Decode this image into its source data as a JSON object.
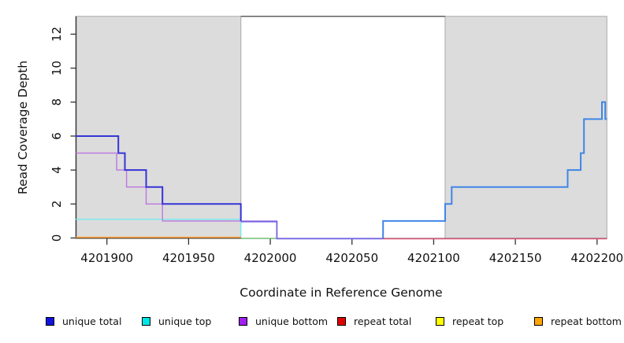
{
  "chart_data": {
    "type": "line",
    "subtype": "step-coverage-plot",
    "title": "",
    "xlabel": "Coordinate in Reference Genome",
    "ylabel": "Read Coverage Depth",
    "xlim": [
      4201881,
      4202206
    ],
    "ylim": [
      0,
      13
    ],
    "x_ticks": [
      4201900,
      4201950,
      4202000,
      4202050,
      4202100,
      4202150,
      4202200
    ],
    "y_ticks": [
      0,
      2,
      4,
      6,
      8,
      10,
      12
    ],
    "grid": false,
    "background": "#ffffff",
    "shaded_regions": [
      {
        "name": "left-shaded-region",
        "x0": 4201881,
        "x1": 4201982,
        "color": "#dcdcdc",
        "border": "#a8a8a8"
      },
      {
        "name": "right-shaded-region",
        "x0": 4202107,
        "x1": 4202206,
        "color": "#dcdcdc",
        "border": "#a8a8a8"
      }
    ],
    "gap_top_line": {
      "x0": 4201982,
      "x1": 4202107,
      "depth": 13.05,
      "color": "#5f5f5f"
    },
    "series": [
      {
        "name": "unique total",
        "color": "#1212e0",
        "steps": [
          [
            4201881,
            6
          ],
          [
            4201907,
            5
          ],
          [
            4201911,
            4
          ],
          [
            4201924,
            3
          ],
          [
            4201934,
            2
          ],
          [
            4201982,
            1
          ],
          [
            4202004,
            0
          ],
          [
            4202069,
            1
          ],
          [
            4202107,
            2
          ],
          [
            4202111,
            3
          ],
          [
            4202182,
            4
          ],
          [
            4202190,
            5
          ],
          [
            4202192,
            7
          ],
          [
            4202203,
            8
          ],
          [
            4202205,
            7
          ],
          [
            4202206,
            7
          ]
        ]
      },
      {
        "name": "unique top",
        "color": "#00e5e5",
        "steps": [
          [
            4201881,
            1
          ],
          [
            4201982,
            0
          ],
          [
            4202069,
            1
          ],
          [
            4202107,
            2
          ],
          [
            4202111,
            3
          ],
          [
            4202182,
            4
          ],
          [
            4202190,
            5
          ],
          [
            4202192,
            7
          ],
          [
            4202203,
            8
          ],
          [
            4202205,
            7
          ],
          [
            4202206,
            7
          ]
        ]
      },
      {
        "name": "unique bottom",
        "color": "#a020f0",
        "steps": [
          [
            4201881,
            5
          ],
          [
            4201906,
            4
          ],
          [
            4201912,
            3
          ],
          [
            4201924,
            2
          ],
          [
            4201934,
            1
          ],
          [
            4202004,
            0
          ],
          [
            4202206,
            0
          ]
        ]
      },
      {
        "name": "repeat total",
        "color": "#e00000",
        "steps": [
          [
            4201881,
            0
          ],
          [
            4202206,
            0
          ]
        ]
      },
      {
        "name": "repeat top",
        "color": "#ffff00",
        "steps": [
          [
            4201881,
            0
          ],
          [
            4202206,
            0
          ]
        ]
      },
      {
        "name": "repeat bottom",
        "color": "#ffa500",
        "steps": [
          [
            4201881,
            0
          ],
          [
            4202206,
            0
          ]
        ]
      }
    ],
    "render_paths": [
      {
        "name": "repeat-bottom-visible",
        "color": "#ff9f33",
        "width": 1.6,
        "dy": -0.8,
        "steps": [
          [
            4201881,
            0
          ],
          [
            4201982,
            0
          ]
        ]
      },
      {
        "name": "unique-top-left",
        "color": "#7deaea",
        "width": 1.5,
        "dy": -2.2,
        "steps": [
          [
            4201881,
            1
          ],
          [
            4201982,
            0
          ]
        ]
      },
      {
        "name": "unique-bottom-left",
        "color": "#bb76e0",
        "width": 1.4,
        "dy": 0,
        "steps": [
          [
            4201881,
            5
          ],
          [
            4201906,
            4
          ],
          [
            4201912,
            3
          ],
          [
            4201924,
            2
          ],
          [
            4201934,
            1
          ],
          [
            4202004,
            0
          ]
        ]
      },
      {
        "name": "unique-total-left",
        "color": "#3634d6",
        "width": 2,
        "dy": 0,
        "steps": [
          [
            4201881,
            6
          ],
          [
            4201907,
            5
          ],
          [
            4201911,
            4
          ],
          [
            4201924,
            3
          ],
          [
            4201934,
            2
          ],
          [
            4201982,
            1
          ]
        ]
      },
      {
        "name": "baseline-green-mid",
        "color": "#66bb6a",
        "width": 1.4,
        "dy": 0.6,
        "steps": [
          [
            4201982,
            0
          ],
          [
            4202004,
            0
          ]
        ]
      },
      {
        "name": "unique-total-mid",
        "color": "#7566e3",
        "width": 1.8,
        "dy": 0.8,
        "steps": [
          [
            4201982,
            1
          ],
          [
            4202004,
            0
          ],
          [
            4202069,
            0
          ]
        ]
      },
      {
        "name": "repeat-total-right",
        "color": "#e05578",
        "width": 1.4,
        "dy": 1.0,
        "steps": [
          [
            4202069,
            0
          ],
          [
            4202206,
            0
          ]
        ]
      },
      {
        "name": "unique-total-right",
        "color": "#3f86e6",
        "width": 2,
        "dy": 0,
        "steps": [
          [
            4202069,
            0
          ],
          [
            4202069,
            1
          ],
          [
            4202107,
            2
          ],
          [
            4202111,
            3
          ],
          [
            4202182,
            4
          ],
          [
            4202190,
            5
          ],
          [
            4202192,
            7
          ],
          [
            4202203,
            8
          ],
          [
            4202205,
            7
          ],
          [
            4202206,
            7
          ]
        ]
      }
    ]
  },
  "legend": {
    "items": [
      {
        "label": "unique total",
        "color": "#1212e0"
      },
      {
        "label": "unique top",
        "color": "#00e5e5"
      },
      {
        "label": "unique bottom",
        "color": "#a020f0"
      },
      {
        "label": "repeat total",
        "color": "#e00000"
      },
      {
        "label": "repeat top",
        "color": "#ffff00"
      },
      {
        "label": "repeat bottom",
        "color": "#ffa500"
      }
    ]
  }
}
